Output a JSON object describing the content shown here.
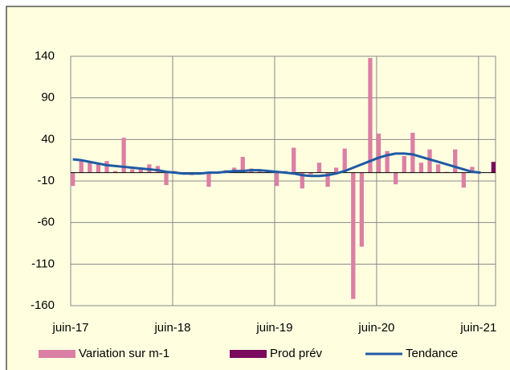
{
  "chart_data": {
    "type": "bar",
    "categories": [
      "juin-17",
      null,
      null,
      null,
      null,
      null,
      null,
      null,
      null,
      null,
      null,
      null,
      "juin-18",
      null,
      null,
      null,
      null,
      null,
      null,
      null,
      null,
      null,
      null,
      null,
      "juin-19",
      null,
      null,
      null,
      null,
      null,
      null,
      null,
      null,
      null,
      null,
      null,
      "juin-20",
      null,
      null,
      null,
      null,
      null,
      null,
      null,
      null,
      null,
      null,
      null,
      "juin-21",
      null
    ],
    "series": [
      {
        "name": "Variation sur m-1",
        "type": "bar",
        "color": "#dc7fa4",
        "values": [
          -16,
          15,
          13,
          11,
          14,
          2,
          42,
          4,
          5,
          10,
          8,
          -15,
          2,
          -2,
          -3,
          -2,
          -17,
          -1,
          3,
          6,
          19,
          5,
          3,
          1,
          -16,
          2,
          30,
          -19,
          -2,
          12,
          -17,
          6,
          29,
          -152,
          -89,
          138,
          47,
          26,
          -14,
          20,
          48,
          12,
          28,
          10,
          1,
          28,
          -18,
          7,
          null,
          null
        ]
      },
      {
        "name": "Prod prév",
        "type": "bar",
        "color": "#7a0a5e",
        "values": [
          null,
          null,
          null,
          null,
          null,
          null,
          null,
          null,
          null,
          null,
          null,
          null,
          null,
          null,
          null,
          null,
          null,
          null,
          null,
          null,
          null,
          null,
          null,
          null,
          null,
          null,
          null,
          null,
          null,
          null,
          null,
          null,
          null,
          null,
          null,
          null,
          null,
          null,
          null,
          null,
          null,
          null,
          null,
          null,
          null,
          null,
          null,
          null,
          null,
          13
        ]
      },
      {
        "name": "Tendance",
        "type": "line",
        "color": "#1f5aa6",
        "values": [
          16,
          15,
          13,
          11,
          9,
          8,
          7,
          6,
          5,
          4,
          3,
          1,
          0,
          -1,
          -1,
          -1,
          0,
          0,
          1,
          2,
          2,
          3,
          3,
          2,
          1,
          0,
          -1,
          -3,
          -4,
          -4,
          -3,
          -1,
          2,
          6,
          10,
          14,
          18,
          21,
          23,
          23,
          22,
          19,
          16,
          13,
          10,
          7,
          4,
          1,
          0,
          null
        ]
      }
    ],
    "ylim": [
      -160,
      140
    ],
    "yticks": [
      -160,
      -110,
      -60,
      -10,
      40,
      90,
      140
    ],
    "grid": true,
    "legend": "bottom"
  }
}
